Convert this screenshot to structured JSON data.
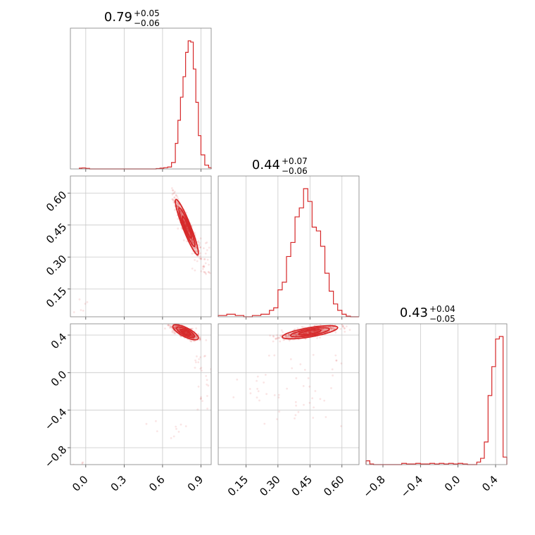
{
  "chart_data": {
    "type": "corner",
    "color": "#d62728",
    "parameters": [
      {
        "range": [
          -0.12,
          0.98
        ],
        "ticks": [
          0.0,
          0.3,
          0.6,
          0.9
        ],
        "tick_labels": [
          "0.0",
          "0.3",
          "0.6",
          "0.9"
        ],
        "summary": {
          "median": "0.79",
          "plus": "+0.05",
          "minus": "−0.06"
        },
        "hist": {
          "edges": [
            -0.05,
            -0.03,
            0.0,
            0.03,
            0.55,
            0.58,
            0.61,
            0.64,
            0.67,
            0.7,
            0.72,
            0.74,
            0.76,
            0.78,
            0.8,
            0.82,
            0.84,
            0.86,
            0.88,
            0.9,
            0.93,
            0.96,
            0.98
          ],
          "counts": [
            0.006,
            0.008,
            0.004,
            0.0,
            0.003,
            0.006,
            0.01,
            0.015,
            0.05,
            0.2,
            0.38,
            0.56,
            0.72,
            0.91,
            1.0,
            0.99,
            0.78,
            0.52,
            0.26,
            0.11,
            0.03,
            0.01
          ]
        }
      },
      {
        "range": [
          0.02,
          0.68
        ],
        "ticks": [
          0.15,
          0.3,
          0.45,
          0.6
        ],
        "tick_labels": [
          "0.15",
          "0.30",
          "0.45",
          "0.60"
        ],
        "summary": {
          "median": "0.44",
          "plus": "+0.07",
          "minus": "−0.06"
        },
        "hist": {
          "edges": [
            0.02,
            0.06,
            0.1,
            0.14,
            0.18,
            0.22,
            0.26,
            0.28,
            0.3,
            0.32,
            0.34,
            0.36,
            0.38,
            0.4,
            0.42,
            0.44,
            0.46,
            0.48,
            0.5,
            0.52,
            0.54,
            0.56,
            0.58,
            0.6,
            0.62,
            0.64,
            0.68
          ],
          "counts": [
            0.01,
            0.02,
            0.01,
            0.0,
            0.01,
            0.02,
            0.05,
            0.07,
            0.21,
            0.27,
            0.47,
            0.58,
            0.78,
            0.85,
            1.0,
            0.9,
            0.7,
            0.67,
            0.55,
            0.34,
            0.2,
            0.1,
            0.05,
            0.02,
            0.005,
            0.0
          ]
        }
      },
      {
        "range": [
          -0.98,
          0.52
        ],
        "ticks": [
          -0.8,
          -0.4,
          0.0,
          0.4
        ],
        "tick_labels": [
          "−0.8",
          "−0.4",
          "0.0",
          "0.4"
        ],
        "summary": {
          "median": "0.43",
          "plus": "+0.04",
          "minus": "−0.05"
        },
        "hist": {
          "edges": [
            -0.98,
            -0.94,
            -0.9,
            -0.6,
            -0.55,
            -0.45,
            -0.4,
            -0.3,
            -0.25,
            -0.2,
            -0.15,
            -0.1,
            -0.05,
            0.0,
            0.05,
            0.1,
            0.2,
            0.24,
            0.28,
            0.32,
            0.36,
            0.4,
            0.44,
            0.48,
            0.52
          ],
          "counts": [
            0.03,
            0.005,
            0.0,
            0.01,
            0.005,
            0.01,
            0.005,
            0.01,
            0.005,
            0.01,
            0.005,
            0.01,
            0.005,
            0.01,
            0.005,
            0.0,
            0.02,
            0.05,
            0.18,
            0.55,
            0.78,
            1.0,
            1.02,
            0.06
          ]
        }
      }
    ]
  }
}
